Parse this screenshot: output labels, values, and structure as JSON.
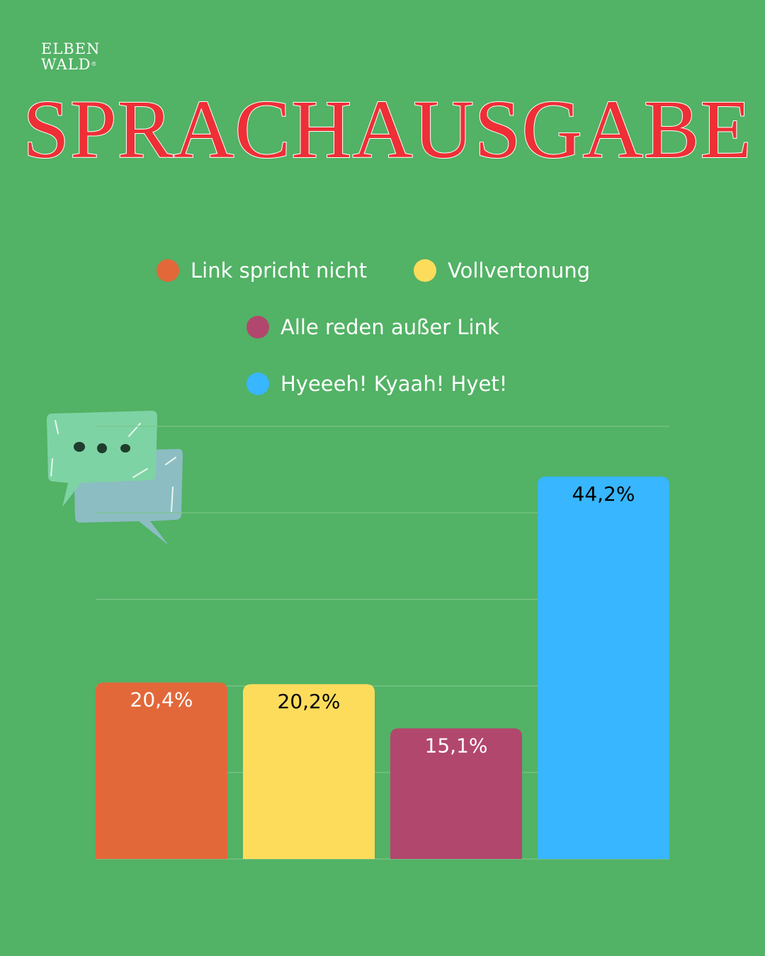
{
  "brand": {
    "line1": "ELBEN",
    "line2": "WALD",
    "mark": "®"
  },
  "title": "SPRACHAUSGABE",
  "icon": "speech-bubbles-icon",
  "colors": {
    "background": "#52b265",
    "title": "#ee2f36",
    "gridline": "#7cc68a"
  },
  "legend": [
    {
      "label": "Link spricht nicht",
      "color": "#e2683a"
    },
    {
      "label": "Vollvertonung",
      "color": "#fddc5c"
    },
    {
      "label": "Alle reden außer Link",
      "color": "#b2476e"
    },
    {
      "label": "Hyeeeh! Kyaah! Hyet!",
      "color": "#38b6ff"
    }
  ],
  "chart_data": {
    "type": "bar",
    "categories": [
      "Link spricht nicht",
      "Vollvertonung",
      "Alle reden außer Link",
      "Hyeeeh! Kyaah! Hyet!"
    ],
    "values": [
      20.4,
      20.2,
      15.1,
      44.2
    ],
    "value_labels": [
      "20,4%",
      "20,2%",
      "15,1%",
      "44,2%"
    ],
    "colors": [
      "#e2683a",
      "#fddc5c",
      "#b2476e",
      "#38b6ff"
    ],
    "label_colors": [
      "#ffffff",
      "#000000",
      "#ffffff",
      "#000000"
    ],
    "ylim": [
      0,
      50
    ],
    "grid": true
  }
}
